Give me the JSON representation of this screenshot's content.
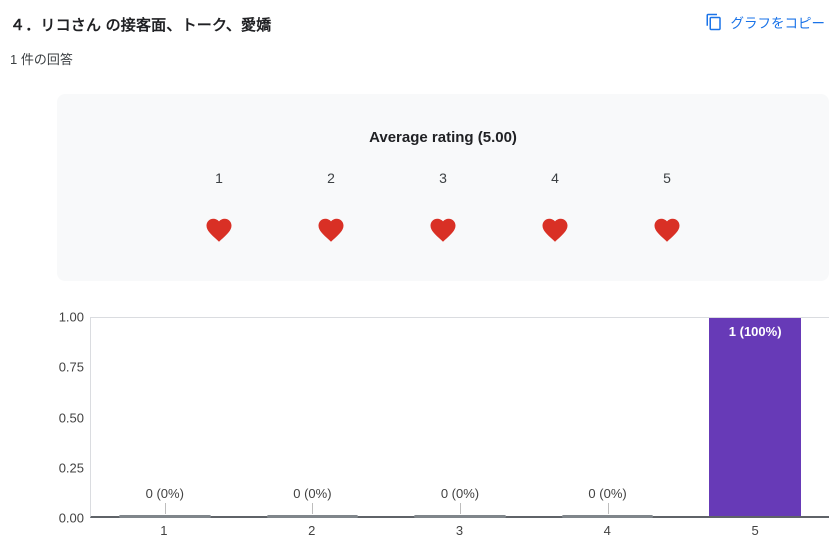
{
  "header": {
    "title": "４．リコさん の接客面、トーク、愛嬌",
    "responses_count": "1 件の回答",
    "copy_button_label": "グラフをコピー",
    "copy_button_icon": "copy-icon",
    "link_color": "#1a73e8"
  },
  "rating_summary": {
    "title": "Average rating (5.00)",
    "average": "5.00",
    "scale_labels": [
      "1",
      "2",
      "3",
      "4",
      "5"
    ],
    "icon": "heart-icon",
    "heart_color": "#d93025",
    "panel_background": "#f8f9fa"
  },
  "chart_data": {
    "type": "bar",
    "title": "",
    "xlabel": "",
    "ylabel": "",
    "categories": [
      "1",
      "2",
      "3",
      "4",
      "5"
    ],
    "values": [
      0,
      0,
      0,
      0,
      1
    ],
    "bar_labels": [
      "0 (0%)",
      "0 (0%)",
      "0 (0%)",
      "0 (0%)",
      "1 (100%)"
    ],
    "y_ticks": [
      "1.00",
      "0.75",
      "0.50",
      "0.25",
      "0.00"
    ],
    "ylim": [
      0,
      1
    ],
    "bar_color": "#673ab7",
    "bar_label_color_inside": "#ffffff",
    "grid": false,
    "legend_position": "none"
  }
}
